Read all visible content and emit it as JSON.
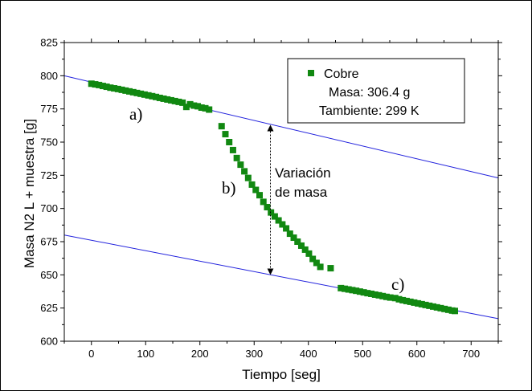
{
  "chart_data": {
    "type": "scatter",
    "xlabel": "Tiempo [seg]",
    "ylabel": "Masa N2 L + muestra [g]",
    "xlim": [
      -50,
      750
    ],
    "ylim": [
      600,
      825
    ],
    "x_ticks": [
      0,
      100,
      200,
      300,
      400,
      500,
      600,
      700
    ],
    "y_ticks": [
      600,
      625,
      650,
      675,
      700,
      725,
      750,
      775,
      800,
      825
    ],
    "grid": false,
    "legend_position": "top-right",
    "marker_color": "#118811",
    "line_color": "#2222dd",
    "legend": {
      "series_name": "Cobre",
      "line1": "Masa: 306.4 g",
      "line2": "Tambiente: 299 K"
    },
    "series": [
      {
        "name": "Cobre",
        "points": [
          [
            0,
            794
          ],
          [
            7,
            793.5
          ],
          [
            14,
            793
          ],
          [
            21,
            792.3
          ],
          [
            28,
            791.7
          ],
          [
            35,
            791
          ],
          [
            42,
            790.5
          ],
          [
            49,
            790
          ],
          [
            56,
            789.4
          ],
          [
            63,
            788.8
          ],
          [
            70,
            788.2
          ],
          [
            77,
            787.6
          ],
          [
            84,
            787
          ],
          [
            91,
            786.4
          ],
          [
            98,
            785.8
          ],
          [
            105,
            785.2
          ],
          [
            112,
            784.6
          ],
          [
            119,
            784
          ],
          [
            126,
            783.3
          ],
          [
            133,
            782.7
          ],
          [
            140,
            782.1
          ],
          [
            147,
            781.5
          ],
          [
            154,
            780.9
          ],
          [
            161,
            780.3
          ],
          [
            168,
            779.7
          ],
          [
            175,
            776.5
          ],
          [
            182,
            778.5
          ],
          [
            189,
            777.5
          ],
          [
            196,
            777
          ],
          [
            203,
            776
          ],
          [
            210,
            775.5
          ],
          [
            217,
            774.5
          ],
          [
            240,
            762
          ],
          [
            247,
            756
          ],
          [
            254,
            750
          ],
          [
            261,
            744
          ],
          [
            268,
            738
          ],
          [
            275,
            733
          ],
          [
            282,
            728
          ],
          [
            289,
            723
          ],
          [
            296,
            718
          ],
          [
            303,
            714
          ],
          [
            310,
            710
          ],
          [
            317,
            705
          ],
          [
            324,
            701
          ],
          [
            331,
            697
          ],
          [
            338,
            694
          ],
          [
            345,
            691
          ],
          [
            352,
            688
          ],
          [
            359,
            685
          ],
          [
            366,
            681
          ],
          [
            373,
            678
          ],
          [
            380,
            675
          ],
          [
            387,
            672
          ],
          [
            394,
            669
          ],
          [
            401,
            666
          ],
          [
            408,
            662
          ],
          [
            415,
            659
          ],
          [
            422,
            656
          ],
          [
            441,
            655
          ],
          [
            460,
            640
          ],
          [
            467,
            639.5
          ],
          [
            474,
            639
          ],
          [
            481,
            638.5
          ],
          [
            488,
            638
          ],
          [
            495,
            637.4
          ],
          [
            502,
            636.8
          ],
          [
            509,
            636.2
          ],
          [
            516,
            635.7
          ],
          [
            523,
            635.1
          ],
          [
            530,
            634.6
          ],
          [
            537,
            634
          ],
          [
            544,
            633.4
          ],
          [
            551,
            632.9
          ],
          [
            560,
            632.5
          ],
          [
            567,
            631.6
          ],
          [
            574,
            630.9
          ],
          [
            581,
            630.3
          ],
          [
            588,
            629.7
          ],
          [
            595,
            629.1
          ],
          [
            602,
            628.5
          ],
          [
            609,
            627.9
          ],
          [
            616,
            627.3
          ],
          [
            623,
            626.7
          ],
          [
            630,
            626.1
          ],
          [
            637,
            625.5
          ],
          [
            644,
            624.9
          ],
          [
            651,
            624.3
          ],
          [
            658,
            623.7
          ],
          [
            665,
            623.1
          ],
          [
            670,
            622.8
          ]
        ]
      }
    ],
    "fit_lines": [
      {
        "from": [
          -50,
          800
        ],
        "to": [
          750,
          723
        ]
      },
      {
        "from": [
          -50,
          680
        ],
        "to": [
          750,
          617
        ]
      }
    ],
    "variation_arrow": {
      "x": 330,
      "y_top": 763,
      "y_bottom": 650
    },
    "annotations": {
      "a": "a)",
      "b": "b)",
      "c": "c)",
      "variacion_line1": "Variación",
      "variacion_line2": "de masa"
    }
  }
}
